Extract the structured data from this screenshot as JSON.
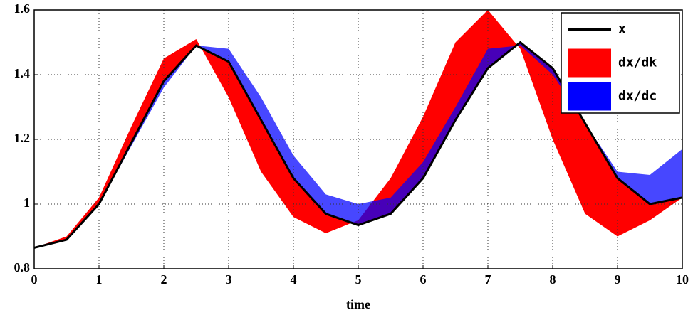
{
  "chart_data": {
    "type": "line",
    "xlabel": "time",
    "x": [
      0,
      0.5,
      1,
      1.5,
      2,
      2.5,
      3,
      3.5,
      4,
      4.5,
      5,
      5.5,
      6,
      6.5,
      7,
      7.5,
      8,
      8.5,
      9,
      9.5,
      10
    ],
    "series": [
      {
        "name": "x",
        "color": "#000000",
        "values": [
          0.865,
          0.89,
          1.0,
          1.19,
          1.38,
          1.49,
          1.44,
          1.26,
          1.08,
          0.97,
          0.935,
          0.97,
          1.08,
          1.26,
          1.42,
          1.5,
          1.42,
          1.25,
          1.08,
          1.0,
          1.02
        ]
      },
      {
        "name": "dx/dk",
        "color": "#ff0000",
        "values": [
          0.865,
          0.9,
          1.02,
          1.24,
          1.45,
          1.51,
          1.33,
          1.1,
          0.96,
          0.91,
          0.95,
          1.08,
          1.27,
          1.5,
          1.6,
          1.48,
          1.2,
          0.97,
          0.9,
          0.95,
          1.02
        ]
      },
      {
        "name": "dx/dc",
        "color": "#0000ff",
        "values": [
          0.865,
          0.89,
          1.0,
          1.18,
          1.36,
          1.49,
          1.48,
          1.33,
          1.15,
          1.03,
          1.0,
          1.02,
          1.13,
          1.3,
          1.48,
          1.49,
          1.4,
          1.25,
          1.1,
          1.09,
          1.17
        ]
      }
    ],
    "xlim": [
      0,
      10
    ],
    "xticks": [
      0,
      1,
      2,
      3,
      4,
      5,
      6,
      7,
      8,
      9,
      10
    ],
    "ylim": [
      0.8,
      1.6
    ],
    "yticks": [
      0.8,
      1,
      1.2,
      1.4,
      1.6
    ],
    "grid": true,
    "legend": "northeast"
  }
}
